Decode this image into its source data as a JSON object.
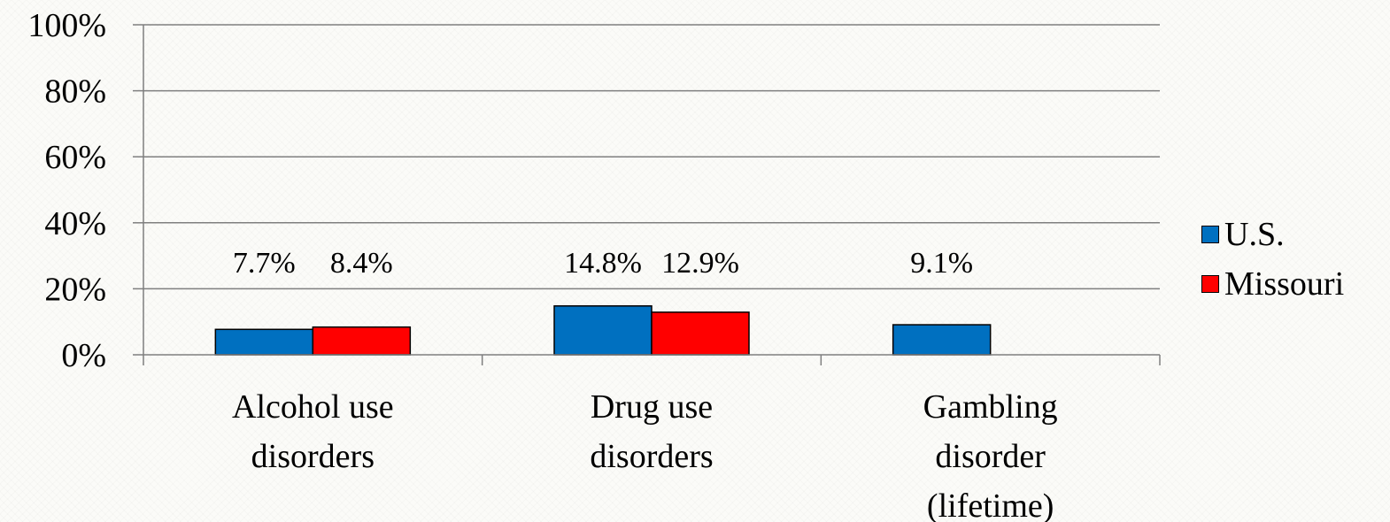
{
  "chart_data": {
    "type": "bar",
    "categories": [
      [
        "Alcohol use",
        "disorders"
      ],
      [
        "Drug use",
        "disorders"
      ],
      [
        "Gambling",
        "disorder",
        "(lifetime)"
      ]
    ],
    "series": [
      {
        "name": "U.S.",
        "color": "#0070c0",
        "values": [
          7.7,
          14.8,
          9.1
        ],
        "labels": [
          "7.7%",
          "14.8%",
          "9.1%"
        ]
      },
      {
        "name": "Missouri",
        "color": "#ff0000",
        "values": [
          8.4,
          12.9,
          null
        ],
        "labels": [
          "8.4%",
          "12.9%",
          ""
        ]
      }
    ],
    "ylim": [
      0,
      100
    ],
    "yticks": [
      0,
      20,
      40,
      60,
      80,
      100
    ],
    "ytick_labels": [
      "0%",
      "20%",
      "40%",
      "60%",
      "80%",
      "100%"
    ],
    "grid": true,
    "legend_position": "right",
    "title": "",
    "xlabel": "",
    "ylabel": ""
  }
}
